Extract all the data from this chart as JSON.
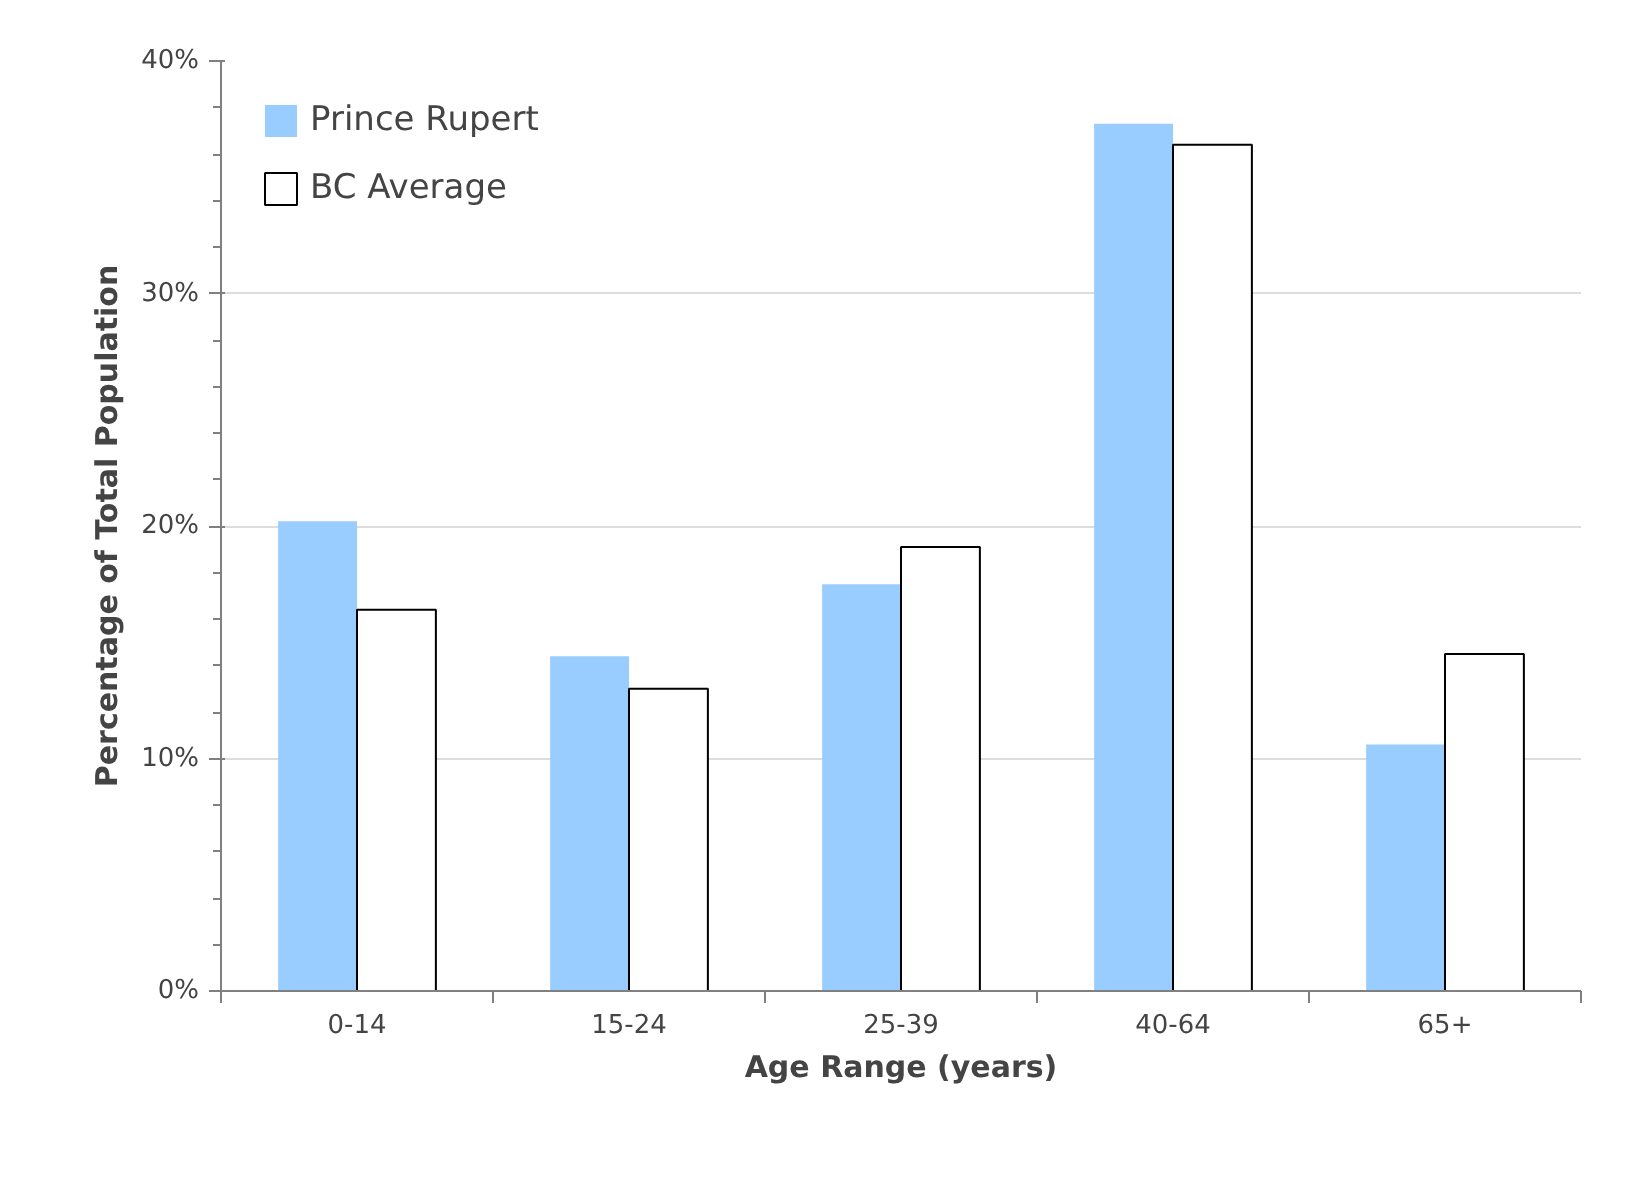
{
  "chart_data": {
    "type": "bar",
    "xlabel": "Age Range (years)",
    "ylabel": "Percentage of Total Population",
    "categories": [
      "0-14",
      "15-24",
      "25-39",
      "40-64",
      "65+"
    ],
    "series": [
      {
        "name": "Prince Rupert",
        "color": "#99ccff",
        "values": [
          20.2,
          14.4,
          17.5,
          37.3,
          10.6
        ]
      },
      {
        "name": "BC Average",
        "color": "#ffffff",
        "values": [
          16.4,
          13.0,
          19.1,
          36.4,
          14.5
        ]
      }
    ],
    "ylim": [
      0,
      40
    ],
    "yticks": [
      {
        "value": 0,
        "label": "0%"
      },
      {
        "value": 10,
        "label": "10%"
      },
      {
        "value": 20,
        "label": "20%"
      },
      {
        "value": 30,
        "label": "30%"
      },
      {
        "value": 40,
        "label": "40%"
      }
    ],
    "grid": "y",
    "legend": "top left"
  }
}
